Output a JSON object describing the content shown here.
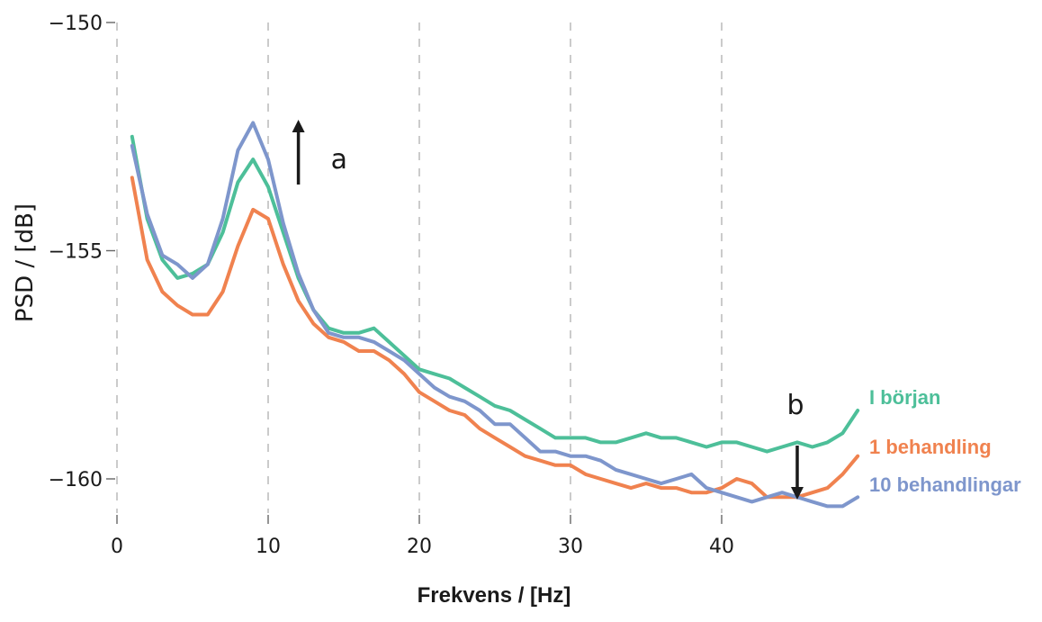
{
  "chart_data": {
    "type": "line",
    "title": "",
    "xlabel": "Frekvens / [Hz]",
    "ylabel": "PSD / [dB]",
    "xlim": [
      0,
      49
    ],
    "ylim": [
      -161,
      -150
    ],
    "xticks": [
      0,
      10,
      20,
      30,
      40
    ],
    "yticks": [
      -150,
      -155,
      -160
    ],
    "xtick_labels": [
      "0",
      "10",
      "20",
      "30",
      "40"
    ],
    "ytick_labels": [
      "−150",
      "−155",
      "−160"
    ],
    "grid": "vertical dashed",
    "legend_placement": "right, inline labels",
    "x": [
      1,
      2,
      3,
      4,
      5,
      6,
      7,
      8,
      9,
      10,
      11,
      12,
      13,
      14,
      15,
      16,
      17,
      18,
      19,
      20,
      21,
      22,
      23,
      24,
      25,
      26,
      27,
      28,
      29,
      30,
      31,
      32,
      33,
      34,
      35,
      36,
      37,
      38,
      39,
      40,
      41,
      42,
      43,
      44,
      45,
      46,
      47,
      48,
      49
    ],
    "series": [
      {
        "name": "I början",
        "color": "#4dbf99",
        "values": [
          -152.5,
          -154.3,
          -155.2,
          -155.6,
          -155.5,
          -155.3,
          -154.6,
          -153.5,
          -153.0,
          -153.6,
          -154.6,
          -155.6,
          -156.3,
          -156.7,
          -156.8,
          -156.8,
          -156.7,
          -157.0,
          -157.3,
          -157.6,
          -157.7,
          -157.8,
          -158.0,
          -158.2,
          -158.4,
          -158.5,
          -158.7,
          -158.9,
          -159.1,
          -159.1,
          -159.1,
          -159.2,
          -159.2,
          -159.1,
          -159.0,
          -159.1,
          -159.1,
          -159.2,
          -159.3,
          -159.2,
          -159.2,
          -159.3,
          -159.4,
          -159.3,
          -159.2,
          -159.3,
          -159.2,
          -159.0,
          -158.5
        ]
      },
      {
        "name": "1 behandling",
        "color": "#f0824f",
        "values": [
          -153.4,
          -155.2,
          -155.9,
          -156.2,
          -156.4,
          -156.4,
          -155.9,
          -154.9,
          -154.1,
          -154.3,
          -155.3,
          -156.1,
          -156.6,
          -156.9,
          -157.0,
          -157.2,
          -157.2,
          -157.4,
          -157.7,
          -158.1,
          -158.3,
          -158.5,
          -158.6,
          -158.9,
          -159.1,
          -159.3,
          -159.5,
          -159.6,
          -159.7,
          -159.7,
          -159.9,
          -160.0,
          -160.1,
          -160.2,
          -160.1,
          -160.2,
          -160.2,
          -160.3,
          -160.3,
          -160.2,
          -160.0,
          -160.1,
          -160.4,
          -160.4,
          -160.4,
          -160.3,
          -160.2,
          -159.9,
          -159.5
        ]
      },
      {
        "name": "10 behandlingar",
        "color": "#7e96cc",
        "values": [
          -152.7,
          -154.2,
          -155.1,
          -155.3,
          -155.6,
          -155.3,
          -154.3,
          -152.8,
          -152.2,
          -153.0,
          -154.4,
          -155.5,
          -156.3,
          -156.8,
          -156.9,
          -156.9,
          -157.0,
          -157.2,
          -157.4,
          -157.7,
          -158.0,
          -158.2,
          -158.3,
          -158.5,
          -158.8,
          -158.8,
          -159.1,
          -159.4,
          -159.4,
          -159.5,
          -159.5,
          -159.6,
          -159.8,
          -159.9,
          -160.0,
          -160.1,
          -160.0,
          -159.9,
          -160.2,
          -160.3,
          -160.4,
          -160.5,
          -160.4,
          -160.3,
          -160.4,
          -160.5,
          -160.6,
          -160.6,
          -160.4
        ]
      }
    ],
    "annotations": [
      {
        "label": "a",
        "x": 12,
        "y": -153.0,
        "direction": "up"
      },
      {
        "label": "b",
        "x": 45,
        "y": -159.3,
        "direction": "down"
      }
    ]
  }
}
